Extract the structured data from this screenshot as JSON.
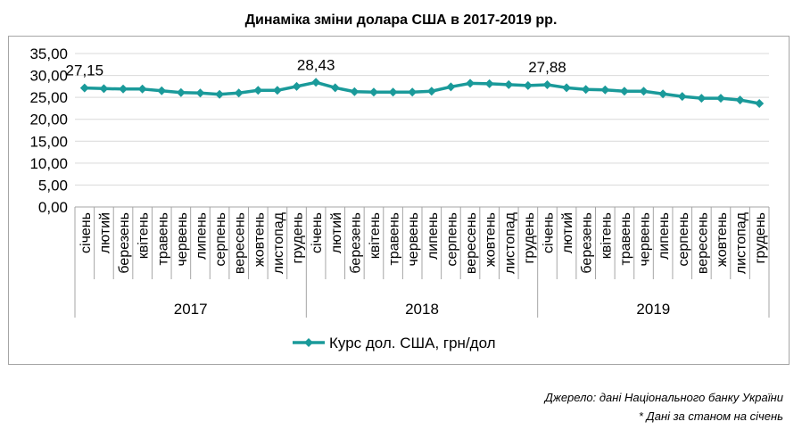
{
  "chart_data": {
    "type": "line",
    "title": "Динаміка зміни долара США в 2017-2019 рр.",
    "xlabel": "",
    "ylabel": "",
    "ylim": [
      0,
      35
    ],
    "yticks": [
      "0,00",
      "5,00",
      "10,00",
      "15,00",
      "20,00",
      "25,00",
      "30,00",
      "35,00"
    ],
    "grid": true,
    "legend_position": "bottom",
    "groups": [
      "2017",
      "2018",
      "2019"
    ],
    "months": [
      "січень",
      "лютий",
      "березень",
      "квітень",
      "травень",
      "червень",
      "липень",
      "серпень",
      "вересень",
      "жовтень",
      "листопад",
      "грудень"
    ],
    "series": [
      {
        "name": "Курс дол. США, грн/дол",
        "color": "#1a9a9a",
        "values": [
          27.15,
          27.0,
          26.9,
          26.9,
          26.5,
          26.1,
          26.0,
          25.7,
          26.0,
          26.6,
          26.6,
          27.5,
          28.43,
          27.2,
          26.3,
          26.2,
          26.2,
          26.2,
          26.4,
          27.4,
          28.2,
          28.1,
          27.9,
          27.7,
          27.88,
          27.2,
          26.8,
          26.7,
          26.4,
          26.4,
          25.8,
          25.2,
          24.8,
          24.8,
          24.4,
          23.6
        ]
      }
    ],
    "data_labels": [
      {
        "index": 0,
        "text": "27,15"
      },
      {
        "index": 12,
        "text": "28,43"
      },
      {
        "index": 24,
        "text": "27,88"
      }
    ]
  },
  "source_note": "Джерело: дані Національного банку України",
  "footnote": "* Дані за станом на січень"
}
